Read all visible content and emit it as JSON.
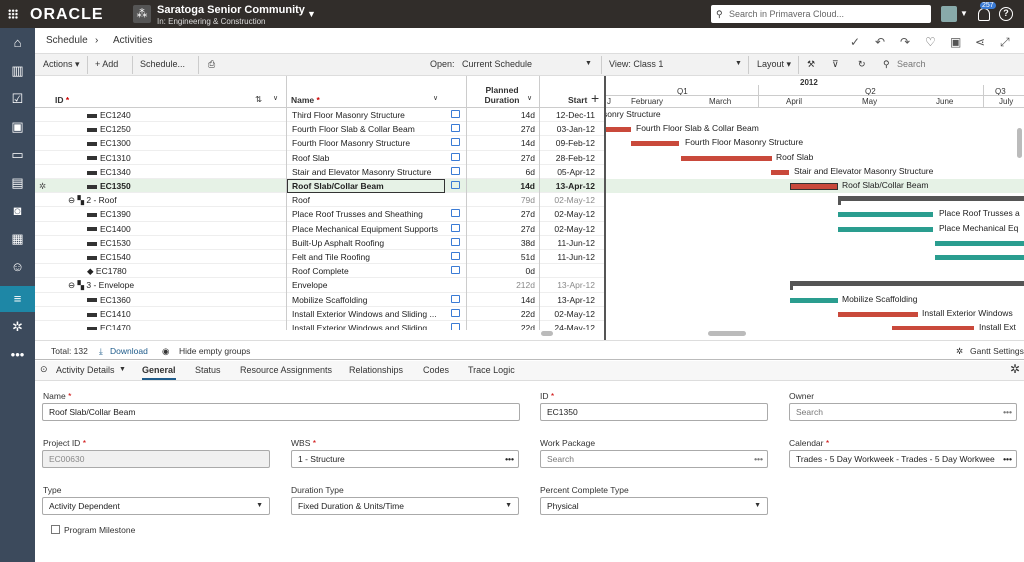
{
  "topbar": {
    "logo": "ORACLE",
    "project_title": "Saratoga Senior Community",
    "project_sub": "In: Engineering & Construction",
    "search_placeholder": "Search in Primavera Cloud...",
    "notif_count": "257",
    "help": "?"
  },
  "breadcrumb": {
    "root": "Schedule",
    "sep": "›",
    "current": "Activities"
  },
  "toolbar": {
    "actions": "Actions ▾",
    "add": "+ Add",
    "schedule": "Schedule...",
    "open_label": "Open:",
    "open_value": "Current Schedule",
    "view": "View: Class 1",
    "layout": "Layout ▾",
    "search_placeholder": "Search"
  },
  "grid": {
    "col_id": "ID",
    "col_name": "Name",
    "col_dur": "Planned Duration",
    "col_dur1": "Planned",
    "col_dur2": "Duration",
    "col_start": "Start",
    "rows": [
      {
        "id": "EC1240",
        "name": "Third Floor Masonry Structure",
        "dur": "14d",
        "start": "12-Dec-11",
        "type": "act",
        "note": true
      },
      {
        "id": "EC1250",
        "name": "Fourth Floor Slab & Collar Beam",
        "dur": "27d",
        "start": "03-Jan-12",
        "type": "act",
        "note": true
      },
      {
        "id": "EC1300",
        "name": "Fourth Floor Masonry Structure",
        "dur": "14d",
        "start": "09-Feb-12",
        "type": "act",
        "note": true
      },
      {
        "id": "EC1310",
        "name": "Roof Slab",
        "dur": "27d",
        "start": "28-Feb-12",
        "type": "act",
        "note": true
      },
      {
        "id": "EC1340",
        "name": "Stair and Elevator Masonry Structure",
        "dur": "6d",
        "start": "05-Apr-12",
        "type": "act",
        "note": true
      },
      {
        "id": "EC1350",
        "name": "Roof Slab/Collar Beam",
        "dur": "14d",
        "start": "13-Apr-12",
        "type": "act",
        "note": true,
        "selected": true
      },
      {
        "id": "2 - Roof",
        "name": "Roof",
        "dur": "79d",
        "start": "02-May-12",
        "type": "wbs",
        "note": false
      },
      {
        "id": "EC1390",
        "name": "Place Roof Trusses and Sheathing",
        "dur": "27d",
        "start": "02-May-12",
        "type": "act",
        "note": true
      },
      {
        "id": "EC1400",
        "name": "Place Mechanical Equipment Supports",
        "dur": "27d",
        "start": "02-May-12",
        "type": "act",
        "note": true
      },
      {
        "id": "EC1530",
        "name": "Built-Up Asphalt Roofing",
        "dur": "38d",
        "start": "11-Jun-12",
        "type": "act",
        "note": true
      },
      {
        "id": "EC1540",
        "name": "Felt and Tile Roofing",
        "dur": "51d",
        "start": "11-Jun-12",
        "type": "act",
        "note": true
      },
      {
        "id": "EC1780",
        "name": "Roof Complete",
        "dur": "0d",
        "start": "",
        "type": "milestone",
        "note": true
      },
      {
        "id": "3 - Envelope",
        "name": "Envelope",
        "dur": "212d",
        "start": "13-Apr-12",
        "type": "wbs",
        "note": false
      },
      {
        "id": "EC1360",
        "name": "Mobilize Scaffolding",
        "dur": "14d",
        "start": "13-Apr-12",
        "type": "act",
        "note": true
      },
      {
        "id": "EC1410",
        "name": "Install Exterior Windows and Sliding ...",
        "dur": "22d",
        "start": "02-May-12",
        "type": "act",
        "note": true
      },
      {
        "id": "EC1470",
        "name": "Install Exterior Windows and Sliding ...",
        "dur": "22d",
        "start": "24-May-12",
        "type": "act",
        "note": true
      }
    ]
  },
  "gantt": {
    "year": "2012",
    "quarters": [
      "Q1",
      "Q2",
      "Q3"
    ],
    "months": [
      "J",
      "February",
      "March",
      "April",
      "May",
      "June",
      "July"
    ],
    "bar_labels": [
      "sonry Structure",
      "Fourth Floor Slab & Collar Beam",
      "Fourth Floor Masonry Structure",
      "Roof Slab",
      "Stair and Elevator Masonry Structure",
      "Roof Slab/Collar Beam",
      "",
      "Place Roof Trusses a",
      "Place Mechanical Eq",
      "",
      "",
      "",
      "",
      "Mobilize Scaffolding",
      "Install Exterior Windows",
      "Install Ext"
    ],
    "colors": {
      "critical": "#c9493b",
      "normal": "#2a9d8f",
      "wbs": "#555555"
    }
  },
  "footer": {
    "total": "Total: 132",
    "download": "Download",
    "hide_empty": "Hide empty groups",
    "gantt_settings": "Gantt Settings"
  },
  "details": {
    "panel": "Activity Details",
    "tabs": [
      "General",
      "Status",
      "Resource Assignments",
      "Relationships",
      "Codes",
      "Trace Logic"
    ],
    "fields": {
      "name_label": "Name",
      "name_value": "Roof Slab/Collar Beam",
      "id_label": "ID",
      "id_value": "EC1350",
      "owner_label": "Owner",
      "owner_placeholder": "Search",
      "projectid_label": "Project ID",
      "projectid_value": "EC00630",
      "wbs_label": "WBS",
      "wbs_value": "1 - Structure",
      "workpkg_label": "Work Package",
      "workpkg_placeholder": "Search",
      "calendar_label": "Calendar",
      "calendar_value": "Trades - 5 Day Workweek - Trades - 5 Day Workwee",
      "type_label": "Type",
      "type_value": "Activity Dependent",
      "durtype_label": "Duration Type",
      "durtype_value": "Fixed Duration & Units/Time",
      "pcttype_label": "Percent Complete Type",
      "pcttype_value": "Physical",
      "milestone_label": "Program Milestone"
    }
  }
}
